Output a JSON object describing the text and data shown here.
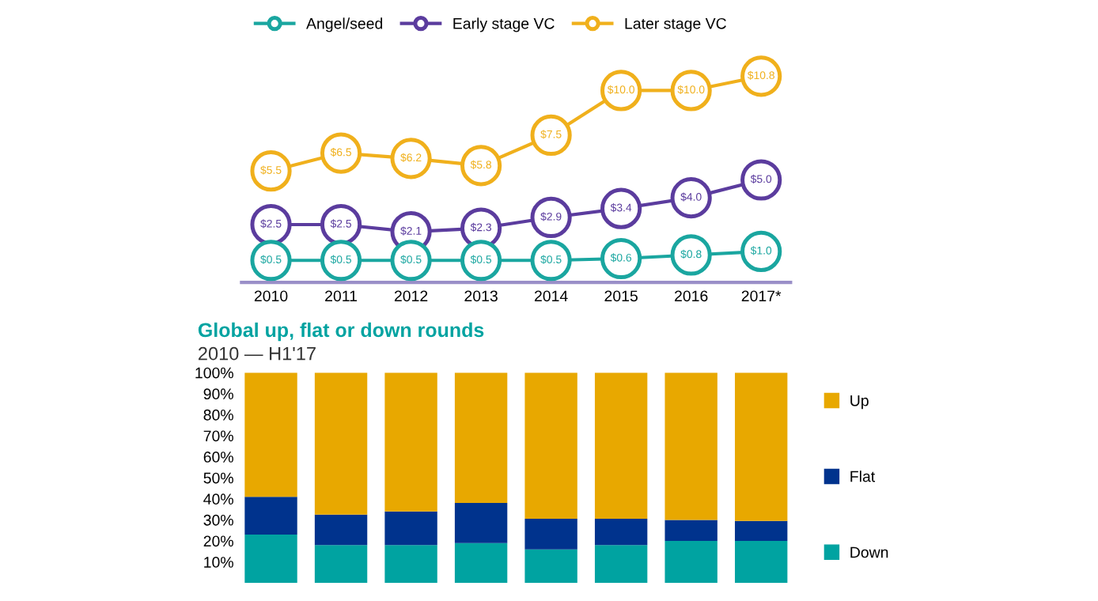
{
  "chart_data": [
    {
      "type": "line",
      "categories": [
        "2010",
        "2011",
        "2012",
        "2013",
        "2014",
        "2015",
        "2016",
        "2017*"
      ],
      "marker": "circle",
      "legend": "top left",
      "tick_labels": "x",
      "series": [
        {
          "name": "Angel/seed",
          "color": "#1aa6a0",
          "values": [
            0.5,
            0.5,
            0.5,
            0.5,
            0.5,
            0.6,
            0.8,
            1.0
          ],
          "value_labels": [
            "$0.5",
            "$0.5",
            "$0.5",
            "$0.5",
            "$0.5",
            "$0.6",
            "$0.8",
            "$1.0"
          ]
        },
        {
          "name": "Early stage VC",
          "color": "#5b3c9e",
          "values": [
            2.5,
            2.5,
            2.1,
            2.3,
            2.9,
            3.4,
            4.0,
            5.0
          ],
          "value_labels": [
            "$2.5",
            "$2.5",
            "$2.1",
            "$2.3",
            "$2.9",
            "$3.4",
            "$4.0",
            "$5.0"
          ]
        },
        {
          "name": "Later stage VC",
          "color": "#f0b01c",
          "values": [
            5.5,
            6.5,
            6.2,
            5.8,
            7.5,
            10.0,
            10.0,
            10.8
          ],
          "value_labels": [
            "$5.5",
            "$6.5",
            "$6.2",
            "$5.8",
            "$7.5",
            "$10.0",
            "$10.0",
            "$10.8"
          ]
        }
      ]
    },
    {
      "type": "bar",
      "stacked": true,
      "title": "Global up, flat or down rounds",
      "subtitle": "2010 — H1'17",
      "categories": [
        null,
        null,
        null,
        null,
        null,
        null,
        null,
        null
      ],
      "legend": "right",
      "ylim": [
        0,
        1
      ],
      "yticks": [
        {
          "value": 0.1,
          "label": "10%"
        },
        {
          "value": 0.2,
          "label": "20%"
        },
        {
          "value": 0.3,
          "label": "30%"
        },
        {
          "value": 0.4,
          "label": "40%"
        },
        {
          "value": 0.5,
          "label": "50%"
        },
        {
          "value": 0.6,
          "label": "60%"
        },
        {
          "value": 0.7,
          "label": "70%"
        },
        {
          "value": 0.8,
          "label": "80%"
        },
        {
          "value": 0.9,
          "label": "90%"
        },
        {
          "value": 1,
          "label": "100%"
        }
      ],
      "tick_labels": "y",
      "series": [
        {
          "name": "Down",
          "color": "#00a3a1",
          "values": [
            0.23,
            0.18,
            0.18,
            0.19,
            0.16,
            0.18,
            0.2,
            0.2
          ]
        },
        {
          "name": "Flat",
          "color": "#00338d",
          "values": [
            0.18,
            0.145,
            0.16,
            0.19,
            0.145,
            0.125,
            0.1,
            0.095
          ]
        },
        {
          "name": "Up",
          "color": "#e8a800",
          "values": [
            0.59,
            0.675,
            0.66,
            0.62,
            0.695,
            0.695,
            0.7,
            0.705
          ]
        }
      ]
    }
  ]
}
